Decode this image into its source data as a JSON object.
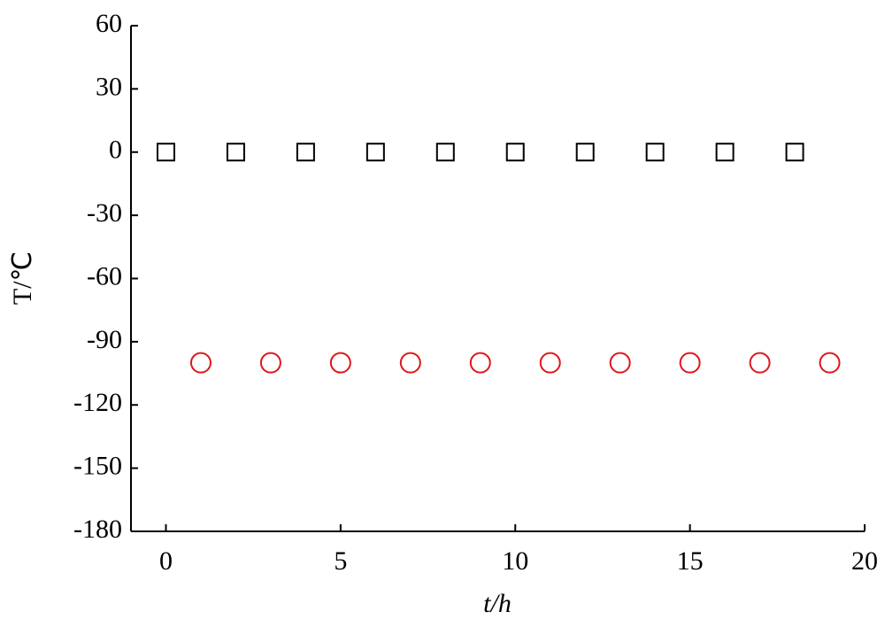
{
  "chart_data": {
    "type": "scatter",
    "xlabel": "t/h",
    "ylabel": "T/℃",
    "xlim": [
      -1,
      20
    ],
    "xticks": [
      0,
      5,
      10,
      15,
      20
    ],
    "ylim": [
      -180,
      60
    ],
    "yticks": [
      -180,
      -150,
      -120,
      -90,
      -60,
      -30,
      0,
      30,
      60
    ],
    "series": [
      {
        "color": "#000000",
        "marker": "square",
        "x": [
          0,
          2,
          4,
          6,
          8,
          10,
          12,
          14,
          16,
          18
        ],
        "values": [
          0,
          0,
          0,
          0,
          0,
          0,
          0,
          0,
          0,
          0
        ]
      },
      {
        "color": "#e0161b",
        "marker": "circle",
        "x": [
          1,
          3,
          5,
          7,
          9,
          11,
          13,
          15,
          17,
          19
        ],
        "values": [
          -100,
          -100,
          -100,
          -100,
          -100,
          -100,
          -100,
          -100,
          -100,
          -100
        ]
      }
    ]
  }
}
